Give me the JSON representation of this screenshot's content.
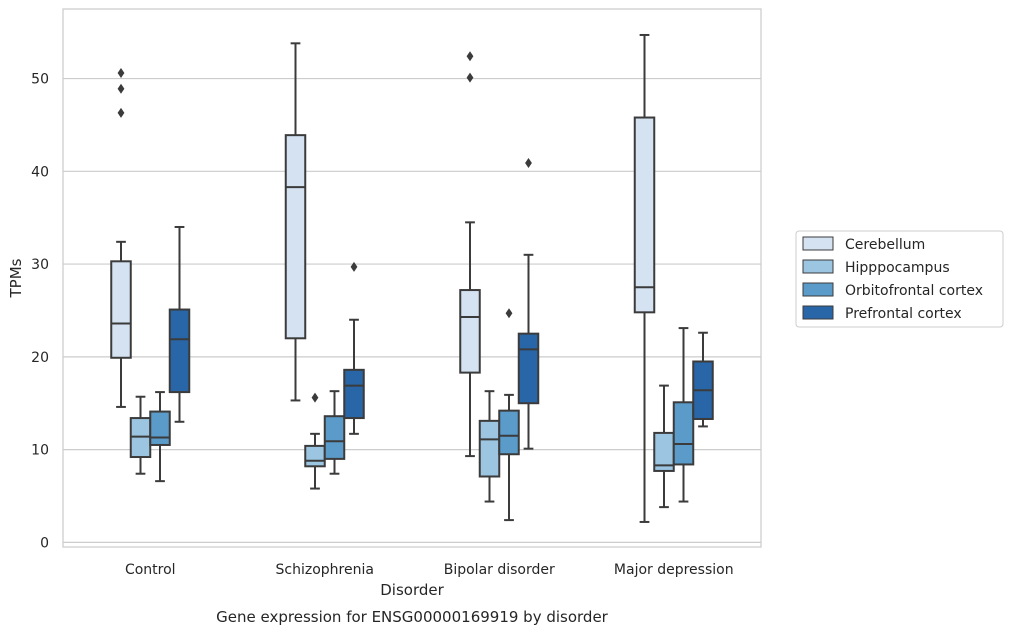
{
  "chart_data": {
    "type": "box",
    "title": "",
    "caption": "Gene expression for ENSG00000169919 by disorder",
    "xlabel": "Disorder",
    "ylabel": "TPMs",
    "ylim": [
      -0.5,
      57.5
    ],
    "yticks": [
      0,
      10,
      20,
      30,
      40,
      50
    ],
    "grid": "horizontal",
    "legend_position": "right",
    "categories": [
      "Control",
      "Schizophrenia",
      "Bipolar disorder",
      "Major depression"
    ],
    "series": [
      {
        "name": "Cerebellum",
        "color": "#d4e2f1",
        "boxes": [
          {
            "whisker_low": 14.6,
            "q1": 19.9,
            "median": 23.6,
            "q3": 30.3,
            "whisker_high": 32.4,
            "outliers": [
              46.3,
              48.9,
              50.6
            ]
          },
          {
            "whisker_low": 15.3,
            "q1": 22.0,
            "median": 38.3,
            "q3": 43.9,
            "whisker_high": 53.8,
            "outliers": []
          },
          {
            "whisker_low": 9.3,
            "q1": 18.3,
            "median": 24.3,
            "q3": 27.2,
            "whisker_high": 34.5,
            "outliers": [
              50.1,
              52.4
            ]
          },
          {
            "whisker_low": 2.2,
            "q1": 24.8,
            "median": 27.5,
            "q3": 45.8,
            "whisker_high": 54.7,
            "outliers": []
          }
        ]
      },
      {
        "name": "Hipppocampus",
        "color": "#9bc5e0",
        "boxes": [
          {
            "whisker_low": 7.4,
            "q1": 9.2,
            "median": 11.4,
            "q3": 13.4,
            "whisker_high": 15.7,
            "outliers": []
          },
          {
            "whisker_low": 5.8,
            "q1": 8.2,
            "median": 8.8,
            "q3": 10.4,
            "whisker_high": 11.7,
            "outliers": [
              15.6
            ]
          },
          {
            "whisker_low": 4.4,
            "q1": 7.1,
            "median": 11.1,
            "q3": 13.1,
            "whisker_high": 16.3,
            "outliers": []
          },
          {
            "whisker_low": 3.8,
            "q1": 7.7,
            "median": 8.3,
            "q3": 11.8,
            "whisker_high": 16.9,
            "outliers": []
          }
        ]
      },
      {
        "name": "Orbitofrontal cortex",
        "color": "#5a9bc9",
        "boxes": [
          {
            "whisker_low": 6.6,
            "q1": 10.5,
            "median": 11.3,
            "q3": 14.1,
            "whisker_high": 16.2,
            "outliers": []
          },
          {
            "whisker_low": 7.4,
            "q1": 9.0,
            "median": 10.9,
            "q3": 13.6,
            "whisker_high": 16.3,
            "outliers": []
          },
          {
            "whisker_low": 2.4,
            "q1": 9.5,
            "median": 11.5,
            "q3": 14.2,
            "whisker_high": 15.9,
            "outliers": [
              24.7
            ]
          },
          {
            "whisker_low": 4.4,
            "q1": 8.4,
            "median": 10.6,
            "q3": 15.1,
            "whisker_high": 23.1,
            "outliers": []
          }
        ]
      },
      {
        "name": "Prefrontal cortex",
        "color": "#2866a7",
        "boxes": [
          {
            "whisker_low": 13.0,
            "q1": 16.2,
            "median": 21.9,
            "q3": 25.1,
            "whisker_high": 34.0,
            "outliers": []
          },
          {
            "whisker_low": 11.7,
            "q1": 13.4,
            "median": 16.9,
            "q3": 18.6,
            "whisker_high": 24.0,
            "outliers": [
              29.7
            ]
          },
          {
            "whisker_low": 10.1,
            "q1": 15.0,
            "median": 20.8,
            "q3": 22.5,
            "whisker_high": 31.0,
            "outliers": [
              40.9
            ]
          },
          {
            "whisker_low": 12.5,
            "q1": 13.3,
            "median": 16.4,
            "q3": 19.5,
            "whisker_high": 22.6,
            "outliers": []
          }
        ]
      }
    ]
  }
}
